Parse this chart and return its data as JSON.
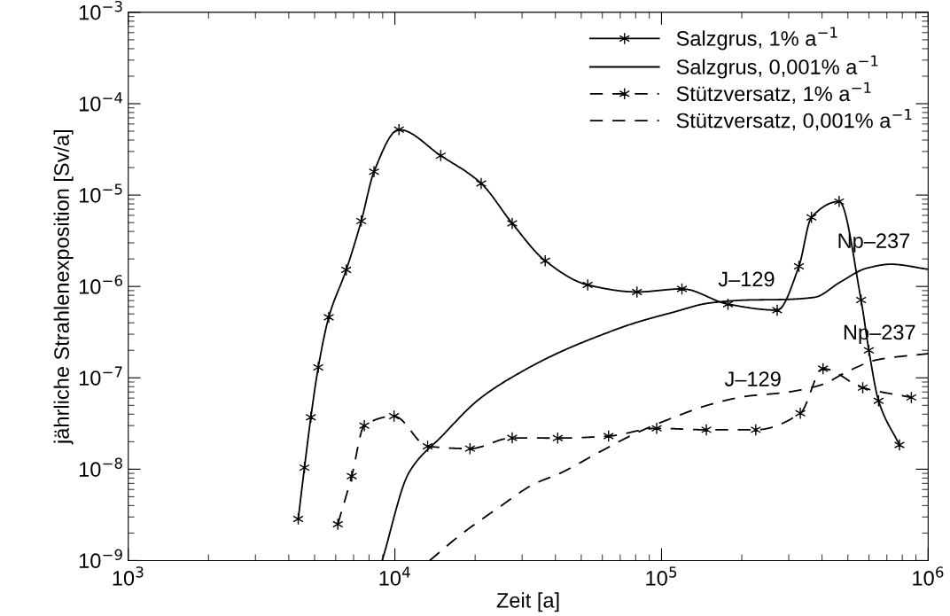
{
  "chart_data": {
    "type": "line",
    "xlabel": "Zeit [a]",
    "ylabel": "jährliche Strahlenexposition [Sv/a]",
    "log": "xy",
    "grid": false,
    "legend": "top right",
    "xlim": [
      1000,
      1000000
    ],
    "ylim": [
      1e-09,
      0.001
    ],
    "xticks": [
      {
        "value": 1000,
        "label": "10$^{3}$"
      },
      {
        "value": 10000,
        "label": "10$^{4}$"
      },
      {
        "value": 100000,
        "label": "10$^{5}$"
      },
      {
        "value": 1000000,
        "label": "10$^{6}$"
      }
    ],
    "yticks": [
      {
        "value": 1e-09,
        "label": "10$^{−9}$"
      },
      {
        "value": 1e-08,
        "label": "10$^{−8}$"
      },
      {
        "value": 1e-07,
        "label": "10$^{−7}$"
      },
      {
        "value": 1e-06,
        "label": "10$^{−6}$"
      },
      {
        "value": 1e-05,
        "label": "10$^{−5}$"
      },
      {
        "value": 0.0001,
        "label": "10$^{−4}$"
      },
      {
        "value": 0.001,
        "label": "10$^{−3}$"
      }
    ],
    "series": [
      {
        "name": "Salzgrus, 1% a$^{−1}$",
        "color": "#000000",
        "marker": "cross",
        "line_style": "solid",
        "x": [
          4340,
          4580,
          4840,
          5160,
          5650,
          6570,
          7480,
          8350,
          10360,
          14860,
          21070,
          27540,
          36620,
          52850,
          80900,
          119300,
          177500,
          271500,
          327600,
          365000,
          463600,
          560300,
          599300,
          651800,
          780500
        ],
        "values": [
          2.85e-09,
          1.04e-08,
          3.7e-08,
          1.3e-07,
          4.6e-07,
          1.52e-06,
          5.2e-06,
          1.8e-05,
          5.2e-05,
          2.7e-05,
          1.34e-05,
          4.9e-06,
          1.91e-06,
          1.04e-06,
          8.7e-07,
          9.4e-07,
          6.4e-07,
          5.5e-07,
          1.66e-06,
          5.7e-06,
          8.5e-06,
          7.1e-07,
          2e-07,
          5.6e-08,
          1.84e-08
        ]
      },
      {
        "name": "Salzgrus, 0,001% a$^{−1}$",
        "color": "#000000",
        "marker": "none",
        "line_style": "solid",
        "x": [
          8960,
          11300,
          15100,
          20800,
          30400,
          41900,
          57800,
          79800,
          110100,
          152000,
          209700,
          289500,
          374500,
          469000,
          587000,
          724000,
          1000000
        ],
        "values": [
          1e-09,
          9.2e-09,
          2.34e-08,
          5.9e-08,
          1.2e-07,
          1.93e-07,
          2.85e-07,
          4e-07,
          5.2e-07,
          6.6e-07,
          7.1e-07,
          7.2e-07,
          7.6e-07,
          1.12e-06,
          1.58e-06,
          1.75e-06,
          1.54e-06
        ]
      },
      {
        "name": "Stützversatz, 1% a$^{−1}$",
        "color": "#000000",
        "marker": "cross",
        "line_style": "dashed",
        "x": [
          6110,
          6890,
          7680,
          9930,
          13270,
          19130,
          27540,
          40800,
          63300,
          95900,
          147300,
          225700,
          331500,
          403400,
          568400,
          865000
        ],
        "values": [
          2.5e-09,
          8.4e-09,
          3e-08,
          3.8e-08,
          1.78e-08,
          1.68e-08,
          2.2e-08,
          2.19e-08,
          2.3e-08,
          2.8e-08,
          2.7e-08,
          2.7e-08,
          4.1e-08,
          1.26e-07,
          7.8e-08,
          6.1e-08
        ]
      },
      {
        "name": "Stützversatz, 0,001% a$^{−1}$",
        "color": "#000000",
        "marker": "none",
        "line_style": "dashed",
        "x": [
          13500,
          17700,
          24500,
          33000,
          41900,
          57800,
          79800,
          110100,
          152000,
          209700,
          289500,
          399000,
          500000,
          647000,
          1000000
        ],
        "values": [
          1e-09,
          1.93e-09,
          3.8e-09,
          6.8e-09,
          9.1e-09,
          1.51e-08,
          2.46e-08,
          3.65e-08,
          5.1e-08,
          6.3e-08,
          6.9e-08,
          8.4e-08,
          1.18e-07,
          1.58e-07,
          1.84e-07
        ]
      }
    ],
    "annotations": [
      "J–129",
      "Np–237",
      "J–129",
      "Np–237"
    ]
  }
}
